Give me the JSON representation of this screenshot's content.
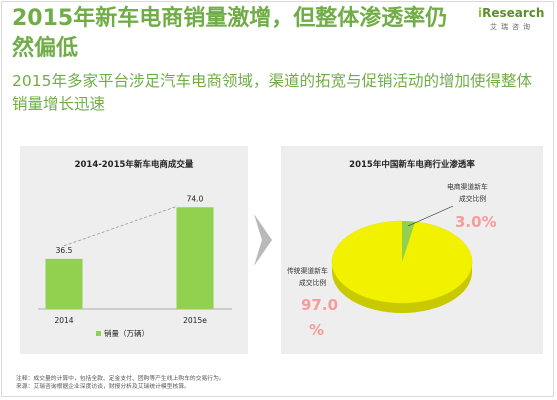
{
  "header": {
    "title": "2015年新车电商销量激增，但整体渗透率仍然偏低",
    "subtitle": "2015年多家平台涉足汽车电商领域，渠道的拓宽与促销活动的增加使得整体销量增长迅速"
  },
  "logo": {
    "prefix": "i",
    "brand": "Research",
    "sub": "艾瑞咨询"
  },
  "colors": {
    "accent": "#70ad47",
    "bar": "#92d050",
    "pie": "#f2f200",
    "highlight": "#f79b9b"
  },
  "chart_data": [
    {
      "type": "bar",
      "title": "2014-2015年新车电商成交量",
      "categories": [
        "2014",
        "2015e"
      ],
      "series": [
        {
          "name": "销量（万辆）",
          "values": [
            36.5,
            74.0
          ]
        }
      ],
      "value_labels": [
        "36.5",
        "74.0"
      ],
      "trend_line": "dashed",
      "legend": "bottom",
      "grid": false
    },
    {
      "type": "pie",
      "title": "2015年中国新车电商行业渗透率",
      "slices": [
        {
          "label": "传统渠道新车成交比例",
          "value": 97.0,
          "value_label": "97.0%"
        },
        {
          "label": "电商渠道新车成交比例",
          "value": 3.0,
          "value_label": "3.0%"
        }
      ],
      "style": "3d"
    }
  ],
  "footnote": [
    "注释：成交量的计算中，包括全款、定金支付、团购等产生线上购车的交易行为。",
    "来源：艾瑞咨询根据企业深度访谈，财报分析及艾瑞统计模型核算。"
  ]
}
